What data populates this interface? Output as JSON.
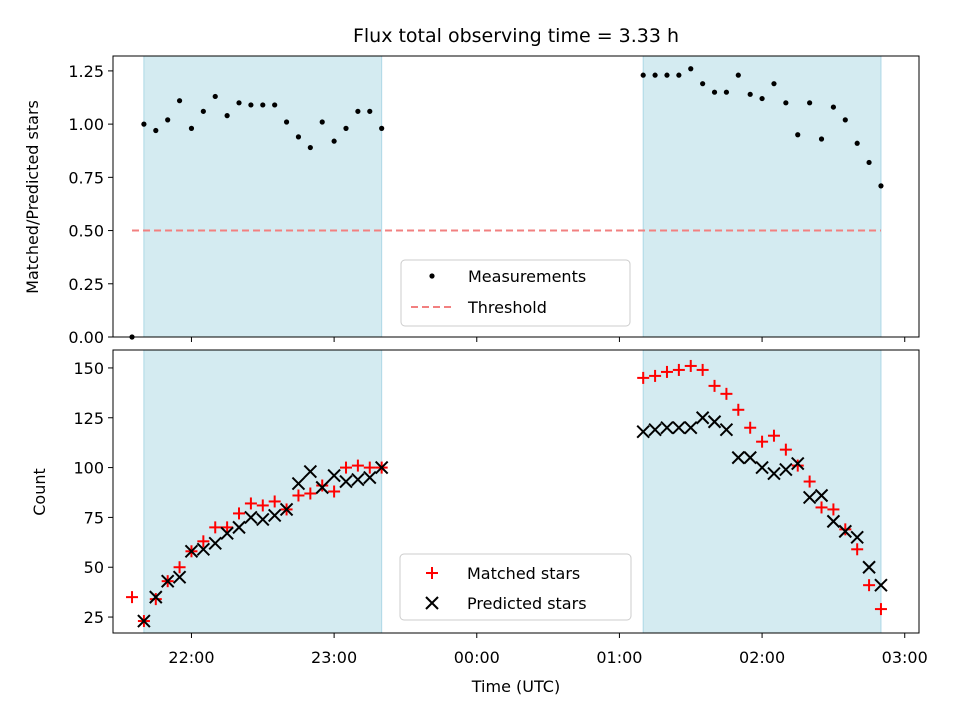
{
  "chart_data": [
    {
      "type": "scatter",
      "title": "Flux total observing time = 3.33 h",
      "ylabel": "Matched/Predicted stars",
      "xlabel": "",
      "ylim": [
        0,
        1.32
      ],
      "yticks": [
        "0.00",
        "0.25",
        "0.50",
        "0.75",
        "1.00",
        "1.25"
      ],
      "ytick_values": [
        0,
        0.25,
        0.5,
        0.75,
        1.0,
        1.25
      ],
      "xlim": [
        "21:27",
        "03:06"
      ],
      "xticks_minutes": [
        1320,
        1380,
        1440,
        1500,
        1560,
        1620
      ],
      "shaded_intervals": [
        [
          "21:40",
          "23:20"
        ],
        [
          "01:10",
          "02:50"
        ]
      ],
      "shade_color": "#d4ebf1",
      "threshold": {
        "label": "Threshold",
        "y": 0.5,
        "x_range": [
          "21:35",
          "02:50"
        ],
        "color": "#f28080"
      },
      "legend": {
        "position": "lower center",
        "entries": [
          "Measurements",
          "Threshold"
        ]
      },
      "series": [
        {
          "name": "Measurements",
          "color": "#000000",
          "x": [
            "21:35",
            "21:40",
            "21:45",
            "21:50",
            "21:55",
            "22:00",
            "22:05",
            "22:10",
            "22:15",
            "22:20",
            "22:25",
            "22:30",
            "22:35",
            "22:40",
            "22:45",
            "22:50",
            "22:55",
            "23:00",
            "23:05",
            "23:10",
            "23:15",
            "23:20",
            "01:10",
            "01:15",
            "01:20",
            "01:25",
            "01:30",
            "01:35",
            "01:40",
            "01:45",
            "01:50",
            "01:55",
            "02:00",
            "02:05",
            "02:10",
            "02:15",
            "02:20",
            "02:25",
            "02:30",
            "02:35",
            "02:40",
            "02:45",
            "02:50"
          ],
          "y": [
            0.0,
            1.0,
            0.97,
            1.02,
            1.11,
            0.98,
            1.06,
            1.13,
            1.04,
            1.1,
            1.09,
            1.09,
            1.09,
            1.01,
            0.94,
            0.89,
            1.01,
            0.92,
            0.98,
            1.06,
            1.06,
            0.98,
            1.23,
            1.23,
            1.23,
            1.23,
            1.26,
            1.19,
            1.15,
            1.15,
            1.23,
            1.14,
            1.12,
            1.19,
            1.1,
            0.95,
            1.1,
            0.93,
            1.08,
            1.02,
            0.91,
            0.82,
            0.71
          ]
        }
      ]
    },
    {
      "type": "scatter",
      "title": "",
      "ylabel": "Count",
      "xlabel": "Time (UTC)",
      "ylim": [
        17,
        159
      ],
      "yticks": [
        "25",
        "50",
        "75",
        "100",
        "125",
        "150"
      ],
      "ytick_values": [
        25,
        50,
        75,
        100,
        125,
        150
      ],
      "xlim": [
        "21:27",
        "03:06"
      ],
      "xticks": [
        "22:00",
        "23:00",
        "00:00",
        "01:00",
        "02:00",
        "03:00"
      ],
      "xticks_minutes": [
        1320,
        1380,
        1440,
        1500,
        1560,
        1620
      ],
      "shaded_intervals": [
        [
          "21:40",
          "23:20"
        ],
        [
          "01:10",
          "02:50"
        ]
      ],
      "shade_color": "#d4ebf1",
      "legend": {
        "position": "lower center",
        "entries": [
          "Matched stars",
          "Predicted stars"
        ]
      },
      "series": [
        {
          "name": "Matched stars",
          "marker": "plus",
          "color": "#ff0000",
          "x": [
            "21:35",
            "21:40",
            "21:45",
            "21:50",
            "21:55",
            "22:00",
            "22:05",
            "22:10",
            "22:15",
            "22:20",
            "22:25",
            "22:30",
            "22:35",
            "22:40",
            "22:45",
            "22:50",
            "22:55",
            "23:00",
            "23:05",
            "23:10",
            "23:15",
            "23:20",
            "01:10",
            "01:15",
            "01:20",
            "01:25",
            "01:30",
            "01:35",
            "01:40",
            "01:45",
            "01:50",
            "01:55",
            "02:00",
            "02:05",
            "02:10",
            "02:15",
            "02:20",
            "02:25",
            "02:30",
            "02:35",
            "02:40",
            "02:45",
            "02:50"
          ],
          "y": [
            35,
            23,
            34,
            43,
            50,
            58,
            63,
            70,
            70,
            77,
            82,
            81,
            83,
            79,
            86,
            87,
            91,
            88,
            100,
            101,
            100,
            100,
            145,
            146,
            148,
            149,
            151,
            149,
            141,
            137,
            129,
            120,
            113,
            116,
            109,
            101,
            93,
            80,
            79,
            69,
            59,
            41,
            29
          ]
        },
        {
          "name": "Predicted stars",
          "marker": "x",
          "color": "#000000",
          "x": [
            "21:40",
            "21:45",
            "21:50",
            "21:55",
            "22:00",
            "22:05",
            "22:10",
            "22:15",
            "22:20",
            "22:25",
            "22:30",
            "22:35",
            "22:40",
            "22:45",
            "22:50",
            "22:55",
            "23:00",
            "23:05",
            "23:10",
            "23:15",
            "23:20",
            "01:10",
            "01:15",
            "01:20",
            "01:25",
            "01:30",
            "01:35",
            "01:40",
            "01:45",
            "01:50",
            "01:55",
            "02:00",
            "02:05",
            "02:10",
            "02:15",
            "02:20",
            "02:25",
            "02:30",
            "02:35",
            "02:40",
            "02:45",
            "02:50"
          ],
          "y": [
            23,
            35,
            43,
            45,
            58,
            59,
            62,
            67,
            70,
            75,
            74,
            76,
            79,
            92,
            98,
            90,
            96,
            93,
            94,
            95,
            100,
            118,
            119,
            120,
            120,
            120,
            125,
            123,
            119,
            105,
            105,
            100,
            97,
            99,
            102,
            85,
            86,
            73,
            68,
            65,
            50,
            41
          ]
        }
      ]
    }
  ]
}
